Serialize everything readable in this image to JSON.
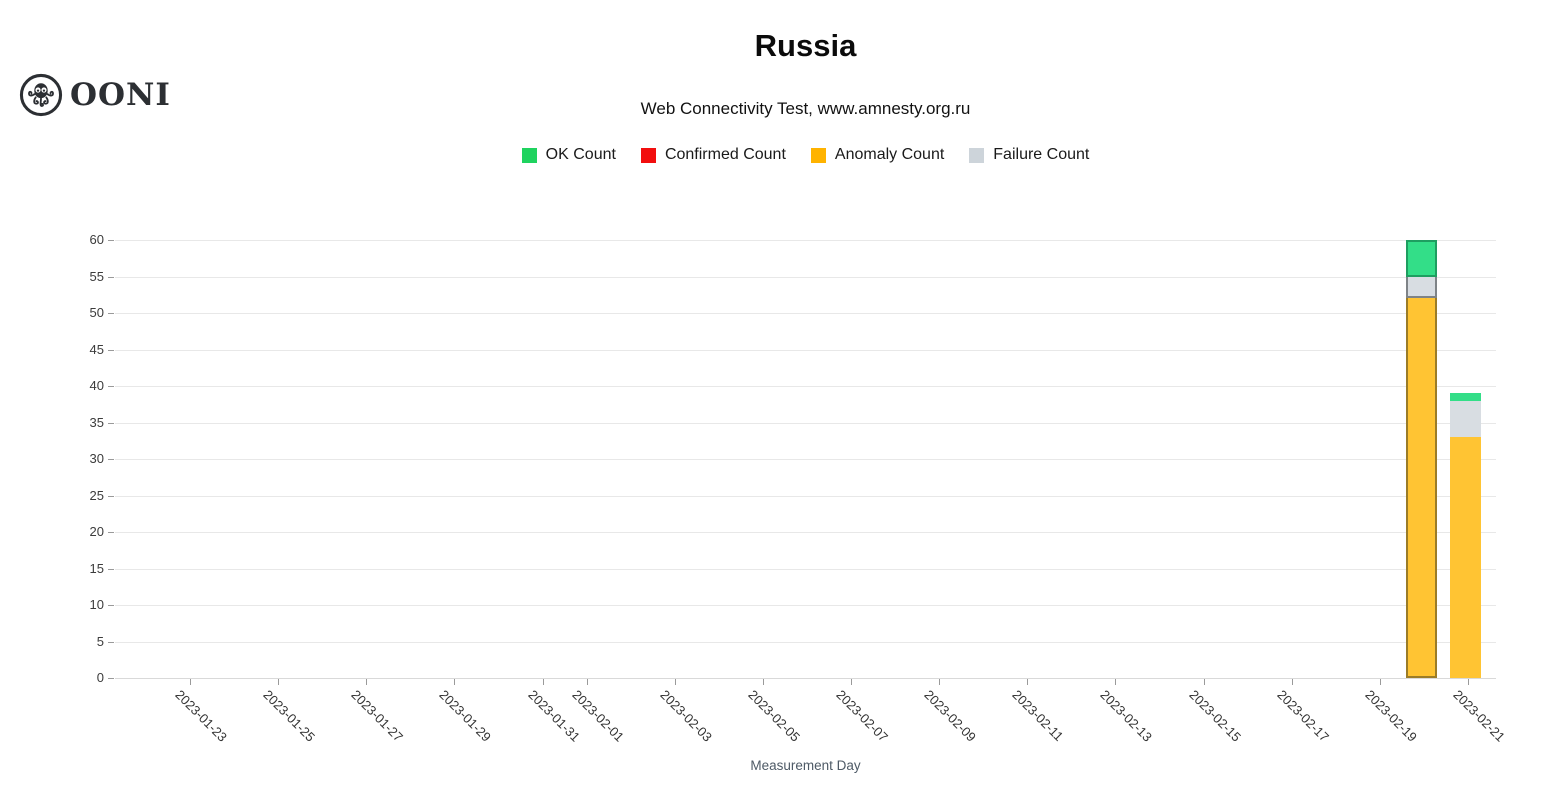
{
  "brand": {
    "logo_icon": "ooni-octopus-icon",
    "logo_text": "OONI"
  },
  "header": {
    "title": "Russia",
    "subtitle": "Web Connectivity Test, www.amnesty.org.ru"
  },
  "legend": [
    {
      "label": "OK Count",
      "color": "#1fd35f"
    },
    {
      "label": "Confirmed Count",
      "color": "#f20e0e"
    },
    {
      "label": "Anomaly Count",
      "color": "#ffb300"
    },
    {
      "label": "Failure Count",
      "color": "#cdd4da"
    }
  ],
  "chart_data": {
    "type": "bar",
    "stacked": true,
    "title": "Russia",
    "subtitle": "Web Connectivity Test, www.amnesty.org.ru",
    "xlabel": "Measurement Day",
    "ylabel": "",
    "ylim": [
      0,
      60
    ],
    "y_tick_step": 5,
    "y_ticks": [
      0,
      5,
      10,
      15,
      20,
      25,
      30,
      35,
      40,
      45,
      50,
      55,
      60
    ],
    "grid": "horizontal",
    "legend_position": "top",
    "x_ticks": [
      "2023-01-23",
      "2023-01-25",
      "2023-01-27",
      "2023-01-29",
      "2023-01-31",
      "2023-02-01",
      "2023-02-03",
      "2023-02-05",
      "2023-02-07",
      "2023-02-09",
      "2023-02-11",
      "2023-02-13",
      "2023-02-15",
      "2023-02-17",
      "2023-02-19",
      "2023-02-21"
    ],
    "x_domain": [
      "2023-01-21",
      "2023-02-22"
    ],
    "stack_order_bottom_to_top": [
      "anomaly",
      "confirmed",
      "failure",
      "ok"
    ],
    "series": [
      {
        "key": "ok",
        "name": "OK Count",
        "fill": "#33de88",
        "stroke": "#1e9e60"
      },
      {
        "key": "confirmed",
        "name": "Confirmed Count",
        "fill": "#f20e0e",
        "stroke": "#a00a0a"
      },
      {
        "key": "anomaly",
        "name": "Anomaly Count",
        "fill": "#ffc433",
        "stroke": "#9b7c27"
      },
      {
        "key": "failure",
        "name": "Failure Count",
        "fill": "#d8dde2",
        "stroke": "#7e8387"
      }
    ],
    "bars": [
      {
        "date": "2023-02-20",
        "anomaly": 52,
        "confirmed": 0,
        "failure": 3,
        "ok": 5,
        "total": 60,
        "highlighted": true
      },
      {
        "date": "2023-02-21",
        "anomaly": 33,
        "confirmed": 0,
        "failure": 5,
        "ok": 1,
        "total": 39,
        "highlighted": false
      }
    ]
  }
}
